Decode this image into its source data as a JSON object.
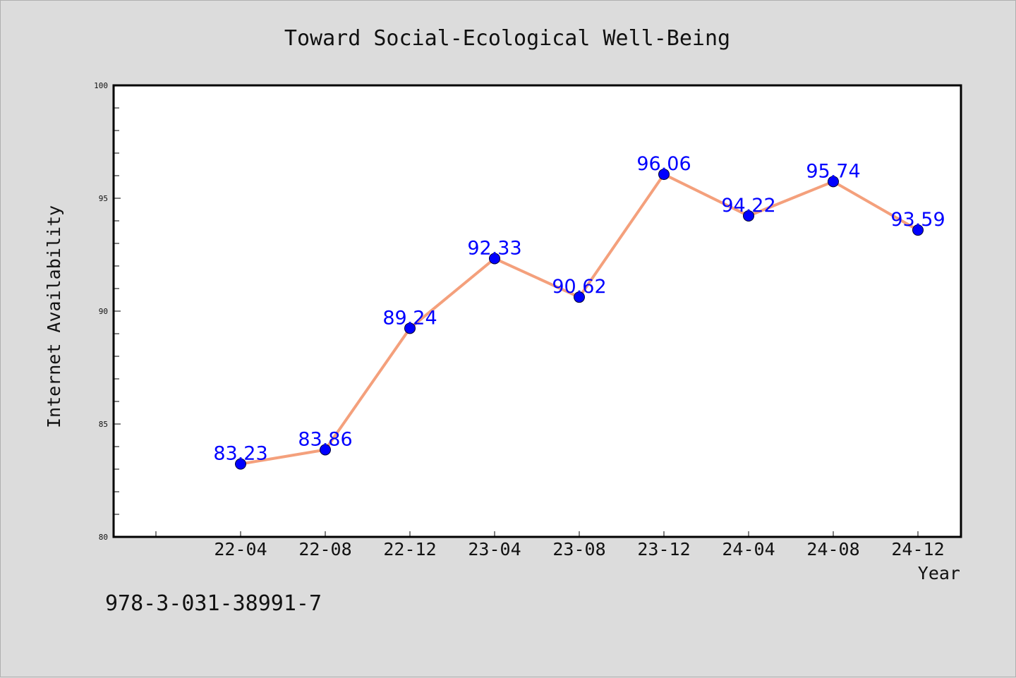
{
  "chart_data": {
    "type": "line",
    "title": "Toward Social-Ecological Well-Being",
    "xlabel": "Year",
    "ylabel": "Internet Availability",
    "categories": [
      "22-04",
      "22-08",
      "22-12",
      "23-04",
      "23-08",
      "23-12",
      "24-04",
      "24-08",
      "24-12"
    ],
    "series": [
      {
        "values": [
          83.23,
          83.86,
          89.24,
          92.33,
          90.62,
          96.06,
          94.22,
          95.74,
          93.59
        ],
        "data_labels": [
          "83.23",
          "83.86",
          "89.24",
          "92.33",
          "90.62",
          "96.06",
          "94.22",
          "95.74",
          "93.59"
        ],
        "line_color": "#f4a07c",
        "marker_color": "#0000ff"
      }
    ],
    "ylim": [
      80,
      100
    ],
    "yticks": [
      80,
      85,
      90,
      95,
      100
    ],
    "grid": false,
    "legend": "none"
  },
  "footer": {
    "isbn": "978-3-031-38991-7"
  },
  "colors": {
    "background": "#dcdcdc",
    "plot_background": "#ffffff"
  }
}
